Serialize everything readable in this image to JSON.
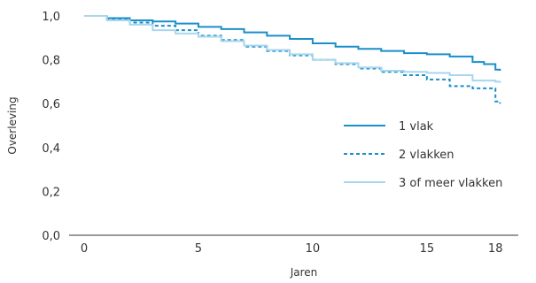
{
  "chart_data": {
    "type": "line",
    "xlabel": "Jaren",
    "ylabel": "Overleving",
    "xlim": [
      0,
      19
    ],
    "ylim": [
      0,
      1
    ],
    "xticks": [
      0,
      5,
      10,
      15,
      18
    ],
    "xtick_labels": [
      "0",
      "5",
      "10",
      "15",
      "18"
    ],
    "yticks": [
      0,
      0.2,
      0.4,
      0.6,
      0.8,
      1
    ],
    "ytick_labels": [
      "0,0",
      "0,2",
      "0,4",
      "0,6",
      "0,8",
      "1,0"
    ],
    "legend": "center-right",
    "grid": false,
    "series": [
      {
        "name": "1 vlak",
        "color": "#1a8fc9",
        "dash": "solid",
        "x": [
          0,
          1,
          2,
          3,
          4,
          5,
          6,
          7,
          8,
          9,
          10,
          11,
          12,
          13,
          14,
          15,
          16,
          17,
          17.5,
          18,
          18.2
        ],
        "y": [
          1.0,
          0.99,
          0.98,
          0.975,
          0.965,
          0.95,
          0.94,
          0.925,
          0.91,
          0.895,
          0.875,
          0.86,
          0.85,
          0.84,
          0.83,
          0.825,
          0.815,
          0.79,
          0.78,
          0.755,
          0.75
        ]
      },
      {
        "name": "2 vlakken",
        "color": "#1a8fc9",
        "dash": "dotted",
        "x": [
          0,
          1,
          2,
          3,
          4,
          5,
          6,
          7,
          8,
          9,
          10,
          11,
          12,
          13,
          14,
          15,
          16,
          17,
          18,
          18.2
        ],
        "y": [
          1.0,
          0.985,
          0.97,
          0.955,
          0.935,
          0.91,
          0.89,
          0.86,
          0.84,
          0.82,
          0.8,
          0.78,
          0.76,
          0.745,
          0.73,
          0.71,
          0.68,
          0.67,
          0.61,
          0.6
        ]
      },
      {
        "name": "3 of meer vlakken",
        "color": "#a9d6ee",
        "dash": "solid",
        "x": [
          0,
          1,
          2,
          3,
          4,
          5,
          6,
          7,
          8,
          9,
          10,
          11,
          12,
          13,
          14,
          15,
          16,
          17,
          18,
          18.2
        ],
        "y": [
          1.0,
          0.98,
          0.96,
          0.935,
          0.92,
          0.905,
          0.885,
          0.865,
          0.845,
          0.825,
          0.8,
          0.785,
          0.765,
          0.75,
          0.745,
          0.74,
          0.73,
          0.705,
          0.7,
          0.695
        ]
      }
    ]
  }
}
